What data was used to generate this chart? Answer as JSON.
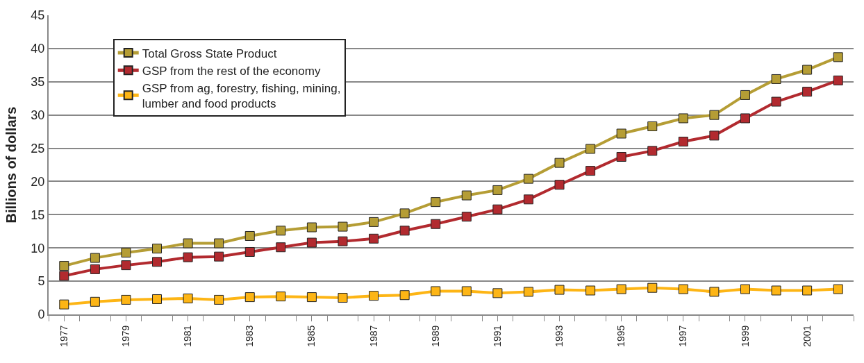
{
  "chart_data": {
    "type": "line",
    "ylabel": "Billions of dollars",
    "x": [
      1977,
      1978,
      1979,
      1980,
      1981,
      1982,
      1983,
      1984,
      1985,
      1986,
      1987,
      1988,
      1989,
      1990,
      1991,
      1992,
      1993,
      1994,
      1995,
      1996,
      1997,
      1998,
      1999,
      2000,
      2001,
      2002
    ],
    "series": [
      {
        "name": "Total Gross State Product",
        "color": "#b59d35",
        "values": [
          7.3,
          8.5,
          9.3,
          9.9,
          10.7,
          10.7,
          11.8,
          12.6,
          13.1,
          13.2,
          13.9,
          15.2,
          16.9,
          17.9,
          18.7,
          20.4,
          22.8,
          24.9,
          27.2,
          28.3,
          29.5,
          30.0,
          33.0,
          35.4,
          36.8,
          38.7
        ]
      },
      {
        "name": "GSP from the rest of the economy",
        "color": "#b22a2f",
        "values": [
          5.8,
          6.8,
          7.4,
          7.9,
          8.6,
          8.7,
          9.4,
          10.1,
          10.8,
          11.0,
          11.4,
          12.6,
          13.6,
          14.7,
          15.8,
          17.3,
          19.5,
          21.6,
          23.7,
          24.6,
          26.0,
          26.9,
          29.5,
          32.0,
          33.5,
          35.2
        ]
      },
      {
        "name": "GSP from ag, forestry, fishing, mining,\nlumber and food products",
        "color": "#fdb515",
        "values": [
          1.5,
          1.9,
          2.2,
          2.3,
          2.4,
          2.2,
          2.6,
          2.7,
          2.6,
          2.5,
          2.8,
          2.9,
          3.5,
          3.5,
          3.2,
          3.4,
          3.7,
          3.6,
          3.8,
          4.0,
          3.8,
          3.4,
          3.8,
          3.6,
          3.6,
          3.8
        ]
      }
    ],
    "xlim": [
      1976.5,
      2002.5
    ],
    "xticks": [
      1977,
      1979,
      1981,
      1983,
      1985,
      1987,
      1989,
      1991,
      1993,
      1995,
      1997,
      1999,
      2001
    ],
    "ylim": [
      0,
      45
    ],
    "yticks": [
      0,
      5,
      10,
      15,
      20,
      25,
      30,
      35,
      40,
      45
    ],
    "grid": "y",
    "legend": "top left",
    "marker": "square",
    "line_style": "solid"
  }
}
